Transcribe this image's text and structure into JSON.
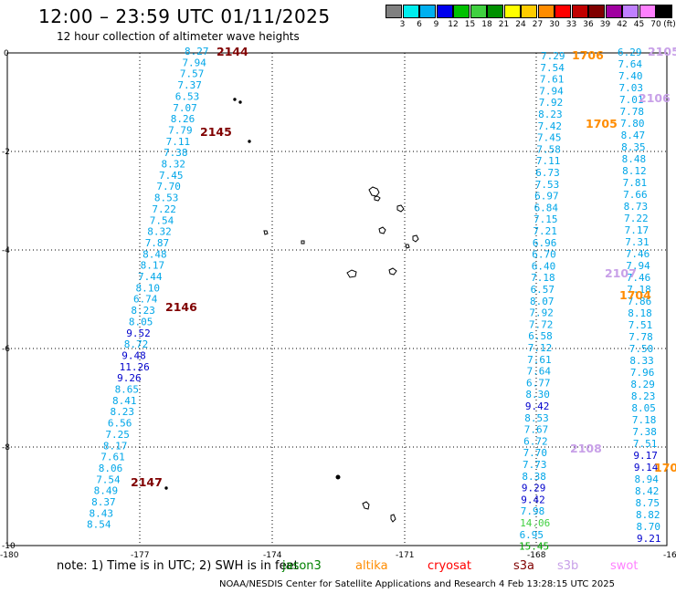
{
  "title": "12:00 – 23:59 UTC 01/11/2025",
  "subtitle": "12 hour collection of altimeter wave heights",
  "legend": {
    "unit": "(ft)",
    "colors": [
      "#808080",
      "#00eeee",
      "#00b0f0",
      "#0000ee",
      "#00c000",
      "#40d040",
      "#009000",
      "#ffff00",
      "#ffcc00",
      "#ff8c00",
      "#ff0000",
      "#c00000",
      "#800000",
      "#a000a0",
      "#c080ff",
      "#ff80ff",
      "#000000"
    ],
    "labels": [
      "3",
      "6",
      "9",
      "12",
      "15",
      "18",
      "21",
      "24",
      "27",
      "30",
      "33",
      "36",
      "39",
      "42",
      "45",
      "70"
    ]
  },
  "axes": {
    "x_ticks": [
      "-180",
      "-177",
      "-174",
      "-171",
      "-168",
      "-16"
    ],
    "y_ticks": [
      "0",
      "-2",
      "-4",
      "-6",
      "-8",
      "-10"
    ]
  },
  "note": {
    "text": "note:  1) Time is in UTC; 2) SWH is in feet",
    "satellites": [
      {
        "name": "jason3",
        "color": "#008000"
      },
      {
        "name": "altika",
        "color": "#ff8c00"
      },
      {
        "name": "cryosat",
        "color": "#ff0000"
      },
      {
        "name": "s3a",
        "color": "#800000"
      },
      {
        "name": "s3b",
        "color": "#c8a0e8"
      },
      {
        "name": "swot",
        "color": "#ff80ff"
      }
    ]
  },
  "credit": "NOAA/NESDIS Center for Satellite Applications and Research     4 Feb 13:28:15 UTC 2025",
  "pass_labels": [
    {
      "text": "2144",
      "color": "#800000"
    },
    {
      "text": "2145",
      "color": "#800000"
    },
    {
      "text": "2146",
      "color": "#800000"
    },
    {
      "text": "2147",
      "color": "#800000"
    },
    {
      "text": "1706",
      "color": "#ff8c00"
    },
    {
      "text": "1705",
      "color": "#ff8c00"
    },
    {
      "text": "1704",
      "color": "#ff8c00"
    },
    {
      "text": "170",
      "color": "#ff8c00"
    },
    {
      "text": "2105",
      "color": "#c8a0e8"
    },
    {
      "text": "2106",
      "color": "#c8a0e8"
    },
    {
      "text": "2107",
      "color": "#c8a0e8"
    },
    {
      "text": "2108",
      "color": "#c8a0e8"
    }
  ],
  "track_west": [
    "8.27",
    "7.94",
    "7.57",
    "7.37",
    "6.53",
    "7.07",
    "8.26",
    "7.79",
    "7.11",
    "7.38",
    "8.32",
    "7.45",
    "7.70",
    "8.53",
    "7.22",
    "7.54",
    "8.32",
    "7.87",
    "8.48",
    "8.17",
    "7.44",
    "8.10",
    "6.74",
    "8.23",
    "8.05",
    "9.52",
    "8.72",
    "9.48",
    "11.26",
    "9.26",
    "8.65",
    "8.41",
    "8.23",
    "6.56",
    "7.25",
    "8.17",
    "7.61",
    "8.06",
    "7.54",
    "8.49",
    "8.37",
    "8.43",
    "8.54"
  ],
  "track_mid": [
    "7.29",
    "7.54",
    "7.61",
    "7.94",
    "7.92",
    "8.23",
    "7.42",
    "7.45",
    "7.58",
    "7.11",
    "6.73",
    "7.53",
    "6.97",
    "6.84",
    "7.15",
    "7.21",
    "6.96",
    "6.70",
    "6.40",
    "7.18",
    "6.57",
    "8.07",
    "7.92",
    "7.72",
    "6.58",
    "7.12",
    "7.61",
    "7.64",
    "6.77",
    "8.30",
    "9.42",
    "8.53",
    "7.67",
    "6.72",
    "7.70",
    "7.73",
    "8.38",
    "9.29",
    "9.42",
    "7.98",
    "14.06",
    "6.95",
    "15.45"
  ],
  "track_east": [
    "6.29",
    "7.64",
    "7.40",
    "7.03",
    "7.01",
    "7.78",
    "7.80",
    "8.47",
    "8.35",
    "8.48",
    "8.12",
    "7.81",
    "7.66",
    "8.73",
    "7.22",
    "7.17",
    "7.31",
    "7.46",
    "7.94",
    "7.46",
    "7.18",
    "7.86",
    "8.18",
    "7.51",
    "7.78",
    "7.50",
    "8.33",
    "7.96",
    "8.29",
    "8.23",
    "8.05",
    "7.18",
    "7.38",
    "7.51",
    "9.17",
    "9.14",
    "8.94",
    "8.42",
    "8.75",
    "8.82",
    "8.70",
    "9.21"
  ]
}
